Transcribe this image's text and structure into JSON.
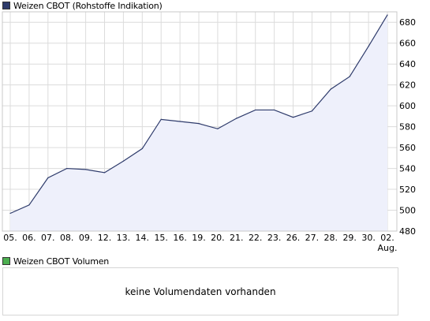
{
  "price_legend": {
    "label": "Weizen CBOT (Rohstoffe Indikation)",
    "color": "#2e3b6b"
  },
  "volume_legend": {
    "label": "Weizen CBOT Volumen",
    "color": "#4caf50"
  },
  "volume_panel": {
    "message": "keine Volumendaten vorhanden"
  },
  "colors": {
    "line": "#2e3b6b",
    "fill": "#eef0fb",
    "grid": "#dcdcdc",
    "border": "#c8c8c8"
  },
  "chart_data": {
    "type": "area",
    "categories": [
      "05.",
      "06.",
      "07.",
      "08.",
      "09.",
      "12.",
      "13.",
      "14.",
      "15.",
      "16.",
      "19.",
      "20.",
      "21.",
      "22.",
      "23.",
      "26.",
      "27.",
      "28.",
      "29.",
      "30.",
      "02."
    ],
    "category_sublabels": {
      "02.": "Aug."
    },
    "series": [
      {
        "values": [
          497,
          505,
          531,
          540,
          539,
          536,
          547,
          559,
          587,
          585,
          583,
          578,
          588,
          596,
          596,
          589,
          595,
          616,
          628,
          657,
          687
        ]
      }
    ],
    "ylim": [
      480,
      690
    ],
    "yticks": [
      480,
      500,
      520,
      540,
      560,
      580,
      600,
      620,
      640,
      660,
      680
    ],
    "grid": true,
    "legend": "top-left"
  }
}
